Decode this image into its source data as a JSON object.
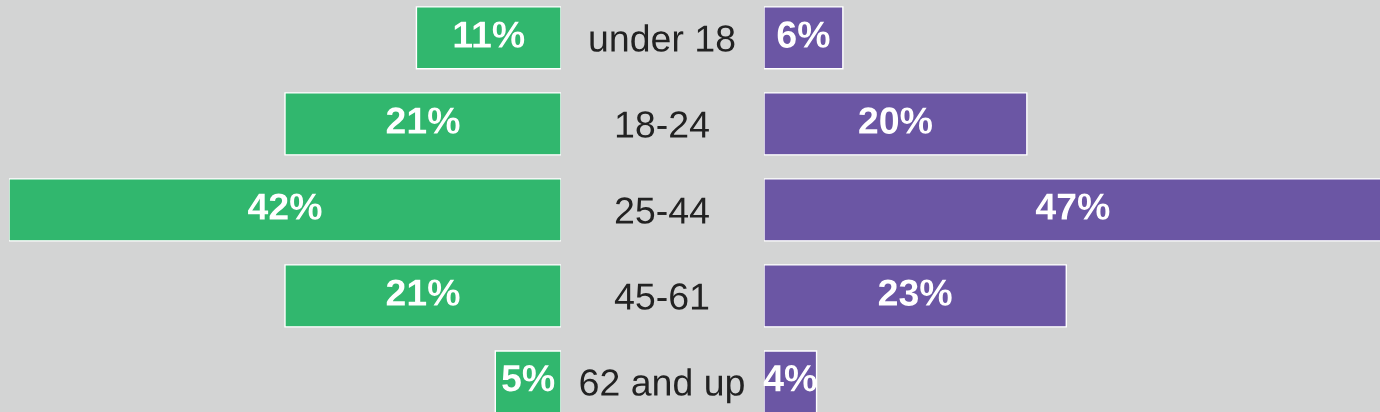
{
  "chart_data": [
    {
      "type": "bar",
      "orientation": "horizontal",
      "categories": [
        "under 18",
        "18-24",
        "25-44",
        "45-61",
        "62 and up"
      ],
      "values": [
        11,
        21,
        42,
        21,
        5
      ],
      "color": "#31b76e",
      "value_labels": [
        "11%",
        "21%",
        "42%",
        "21%",
        "5%"
      ],
      "xlim": [
        42,
        0
      ],
      "tick_labels": "y"
    },
    {
      "type": "bar",
      "orientation": "horizontal",
      "categories": [
        null,
        null,
        null,
        null,
        null
      ],
      "values": [
        6,
        20,
        47,
        23,
        4
      ],
      "color": "#6b56a4",
      "value_labels": [
        "6%",
        "20%",
        "47%",
        "23%",
        "4%"
      ],
      "xlim": [
        0,
        47
      ],
      "tick_labels": false
    }
  ]
}
